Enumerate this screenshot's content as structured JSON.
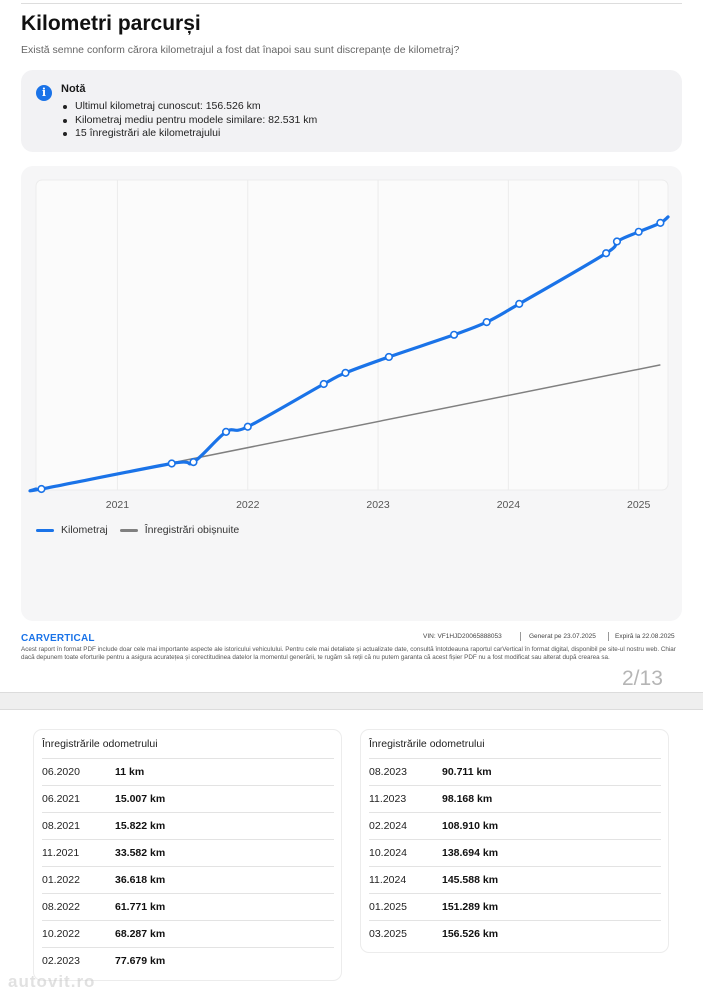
{
  "page": {
    "title": "Kilometri parcurși",
    "subtitle": "Există semne conform cărora kilometrajul a fost dat înapoi sau sunt discrepanțe de kilometraj?"
  },
  "note": {
    "icon": "info-icon",
    "icon_glyph": "i",
    "title": "Notă",
    "items": [
      "Ultimul kilometraj cunoscut: 156.526 km",
      "Kilometraj mediu pentru modele similare: 82.531 km",
      "15 înregistrări ale kilometrajului"
    ]
  },
  "chart_data": {
    "type": "line",
    "x_ticks": [
      "2021",
      "2022",
      "2023",
      "2024",
      "2025"
    ],
    "x_domain": [
      "2020-06",
      "2025-03"
    ],
    "ylim": [
      0,
      160000
    ],
    "grid": true,
    "legend_position": "bottom-left",
    "series": [
      {
        "name": "Kilometraj",
        "color": "#1a73e8",
        "points": [
          {
            "x": "06.2020",
            "y": 11
          },
          {
            "x": "06.2021",
            "y": 15007
          },
          {
            "x": "08.2021",
            "y": 15822
          },
          {
            "x": "11.2021",
            "y": 33582
          },
          {
            "x": "01.2022",
            "y": 36618
          },
          {
            "x": "08.2022",
            "y": 61771
          },
          {
            "x": "10.2022",
            "y": 68287
          },
          {
            "x": "02.2023",
            "y": 77679
          },
          {
            "x": "08.2023",
            "y": 90711
          },
          {
            "x": "11.2023",
            "y": 98168
          },
          {
            "x": "02.2024",
            "y": 108910
          },
          {
            "x": "10.2024",
            "y": 138694
          },
          {
            "x": "11.2024",
            "y": 145588
          },
          {
            "x": "01.2025",
            "y": 151289
          },
          {
            "x": "03.2025",
            "y": 156526
          }
        ]
      },
      {
        "name": "Înregistrări obișnuite",
        "color": "#808080",
        "points": [
          {
            "x": "06.2020",
            "y": 0
          },
          {
            "x": "03.2025",
            "y": 73000
          }
        ]
      }
    ]
  },
  "footer": {
    "logo": "CARVERTICAL",
    "vin": "VIN:  VF1HJD20065888053",
    "generated": "Generat pe  23.07.2025",
    "expires": "Expiră la  22.08.2025",
    "disclaimer": "Acest raport în format PDF include doar cele mai importante aspecte ale istoricului vehiculului. Pentru cele mai detaliate și actualizate date, consultă întotdeauna raportul carVertical în format digital, disponibil pe site-ul nostru web. Chiar dacă depunem toate eforturile pentru a asigura acuratețea și corectitudinea datelor la momentul generării, te rugăm să reții că nu putem garanta că acest fișier PDF nu a fost modificat sau alterat după crearea sa.",
    "page_number": "2/13"
  },
  "odometer": {
    "header": "Înregistrările odometrului",
    "left": [
      {
        "date": "06.2020",
        "km": "11 km"
      },
      {
        "date": "06.2021",
        "km": "15.007 km"
      },
      {
        "date": "08.2021",
        "km": "15.822 km"
      },
      {
        "date": "11.2021",
        "km": "33.582 km"
      },
      {
        "date": "01.2022",
        "km": "36.618 km"
      },
      {
        "date": "08.2022",
        "km": "61.771 km"
      },
      {
        "date": "10.2022",
        "km": "68.287 km"
      },
      {
        "date": "02.2023",
        "km": "77.679 km"
      }
    ],
    "right": [
      {
        "date": "08.2023",
        "km": "90.711 km"
      },
      {
        "date": "11.2023",
        "km": "98.168 km"
      },
      {
        "date": "02.2024",
        "km": "108.910 km"
      },
      {
        "date": "10.2024",
        "km": "138.694 km"
      },
      {
        "date": "11.2024",
        "km": "145.588 km"
      },
      {
        "date": "01.2025",
        "km": "151.289 km"
      },
      {
        "date": "03.2025",
        "km": "156.526 km"
      }
    ]
  },
  "watermark": "autovit.ro"
}
